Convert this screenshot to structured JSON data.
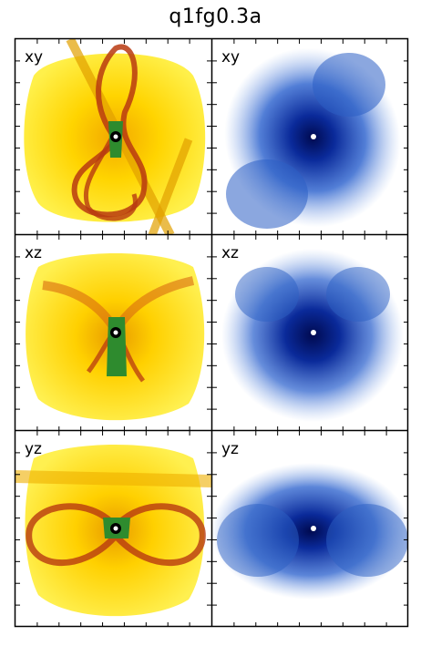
{
  "title": "q1fg0.3a",
  "panels": [
    {
      "label": "xy"
    },
    {
      "label": "xy"
    },
    {
      "label": "xz"
    },
    {
      "label": "xz"
    },
    {
      "label": "yz"
    },
    {
      "label": "yz"
    }
  ],
  "colors": {
    "gas_outer": "#ffe600",
    "gas_mid": "#f2b000",
    "gas_dense": "#b83a10",
    "gas_core": "#2e8b2e",
    "stars_light": "#4a7fd8",
    "stars_dense": "#0a1e7a"
  }
}
